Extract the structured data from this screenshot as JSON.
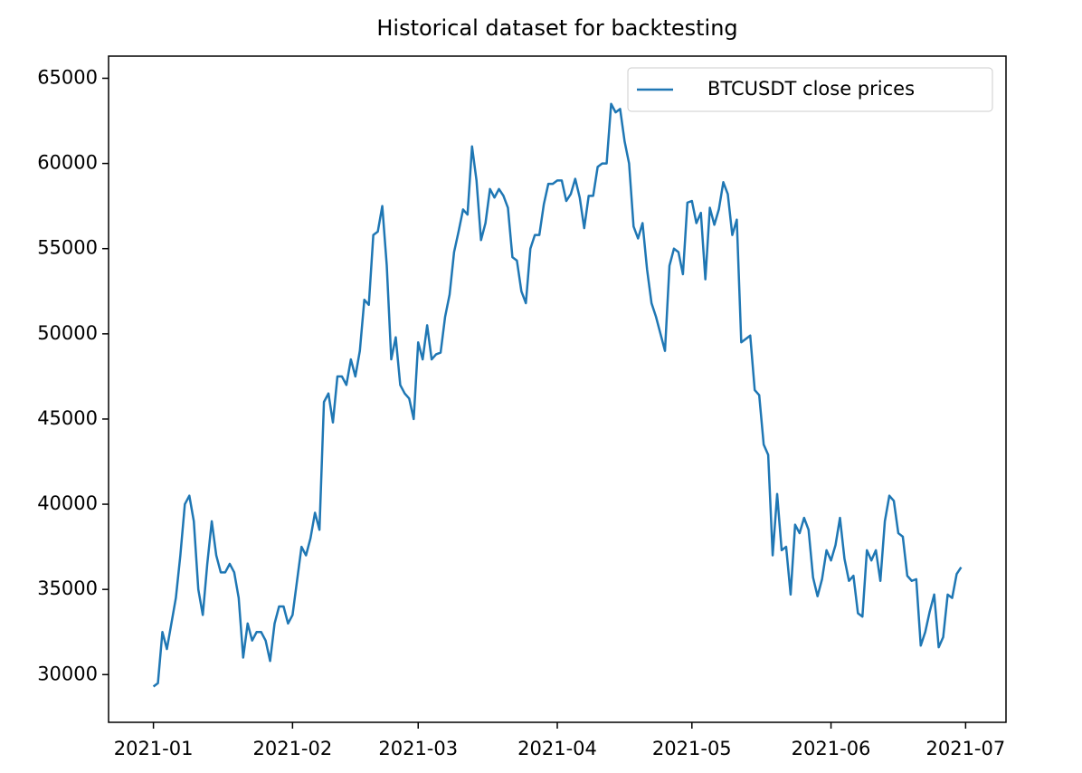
{
  "chart_data": {
    "type": "line",
    "title": "Historical dataset for backtesting",
    "x": [
      "2021-01-01",
      "2021-01-02",
      "2021-01-03",
      "2021-01-04",
      "2021-01-05",
      "2021-01-06",
      "2021-01-07",
      "2021-01-08",
      "2021-01-09",
      "2021-01-10",
      "2021-01-11",
      "2021-01-12",
      "2021-01-13",
      "2021-01-14",
      "2021-01-15",
      "2021-01-16",
      "2021-01-17",
      "2021-01-18",
      "2021-01-19",
      "2021-01-20",
      "2021-01-21",
      "2021-01-22",
      "2021-01-23",
      "2021-01-24",
      "2021-01-25",
      "2021-01-26",
      "2021-01-27",
      "2021-01-28",
      "2021-01-29",
      "2021-01-30",
      "2021-01-31",
      "2021-02-01",
      "2021-02-02",
      "2021-02-03",
      "2021-02-04",
      "2021-02-05",
      "2021-02-06",
      "2021-02-07",
      "2021-02-08",
      "2021-02-09",
      "2021-02-10",
      "2021-02-11",
      "2021-02-12",
      "2021-02-13",
      "2021-02-14",
      "2021-02-15",
      "2021-02-16",
      "2021-02-17",
      "2021-02-18",
      "2021-02-19",
      "2021-02-20",
      "2021-02-21",
      "2021-02-22",
      "2021-02-23",
      "2021-02-24",
      "2021-02-25",
      "2021-02-26",
      "2021-02-27",
      "2021-02-28",
      "2021-03-01",
      "2021-03-02",
      "2021-03-03",
      "2021-03-04",
      "2021-03-05",
      "2021-03-06",
      "2021-03-07",
      "2021-03-08",
      "2021-03-09",
      "2021-03-10",
      "2021-03-11",
      "2021-03-12",
      "2021-03-13",
      "2021-03-14",
      "2021-03-15",
      "2021-03-16",
      "2021-03-17",
      "2021-03-18",
      "2021-03-19",
      "2021-03-20",
      "2021-03-21",
      "2021-03-22",
      "2021-03-23",
      "2021-03-24",
      "2021-03-25",
      "2021-03-26",
      "2021-03-27",
      "2021-03-28",
      "2021-03-29",
      "2021-03-30",
      "2021-03-31",
      "2021-04-01",
      "2021-04-02",
      "2021-04-03",
      "2021-04-04",
      "2021-04-05",
      "2021-04-06",
      "2021-04-07",
      "2021-04-08",
      "2021-04-09",
      "2021-04-10",
      "2021-04-11",
      "2021-04-12",
      "2021-04-13",
      "2021-04-14",
      "2021-04-15",
      "2021-04-16",
      "2021-04-17",
      "2021-04-18",
      "2021-04-19",
      "2021-04-20",
      "2021-04-21",
      "2021-04-22",
      "2021-04-23",
      "2021-04-24",
      "2021-04-25",
      "2021-04-26",
      "2021-04-27",
      "2021-04-28",
      "2021-04-29",
      "2021-04-30",
      "2021-05-01",
      "2021-05-02",
      "2021-05-03",
      "2021-05-04",
      "2021-05-05",
      "2021-05-06",
      "2021-05-07",
      "2021-05-08",
      "2021-05-09",
      "2021-05-10",
      "2021-05-11",
      "2021-05-12",
      "2021-05-13",
      "2021-05-14",
      "2021-05-15",
      "2021-05-16",
      "2021-05-17",
      "2021-05-18",
      "2021-05-19",
      "2021-05-20",
      "2021-05-21",
      "2021-05-22",
      "2021-05-23",
      "2021-05-24",
      "2021-05-25",
      "2021-05-26",
      "2021-05-27",
      "2021-05-28",
      "2021-05-29",
      "2021-05-30",
      "2021-05-31",
      "2021-06-01",
      "2021-06-02",
      "2021-06-03",
      "2021-06-04",
      "2021-06-05",
      "2021-06-06",
      "2021-06-07",
      "2021-06-08",
      "2021-06-09",
      "2021-06-10",
      "2021-06-11",
      "2021-06-12",
      "2021-06-13",
      "2021-06-14",
      "2021-06-15",
      "2021-06-16",
      "2021-06-17",
      "2021-06-18",
      "2021-06-19",
      "2021-06-20",
      "2021-06-21",
      "2021-06-22",
      "2021-06-23",
      "2021-06-24",
      "2021-06-25",
      "2021-06-26",
      "2021-06-27",
      "2021-06-28",
      "2021-06-29",
      "2021-06-30"
    ],
    "series": [
      {
        "name": "BTCUSDT close prices",
        "color": "#1f77b4",
        "values": [
          29300,
          29500,
          32500,
          31500,
          33000,
          34500,
          37000,
          40000,
          40500,
          39000,
          35000,
          33500,
          36500,
          39000,
          37000,
          36000,
          36000,
          36500,
          36000,
          34500,
          31000,
          33000,
          32000,
          32500,
          32500,
          32000,
          30800,
          33000,
          34000,
          34000,
          33000,
          33500,
          35500,
          37500,
          37000,
          38000,
          39500,
          38500,
          46000,
          46500,
          44800,
          47500,
          47500,
          47000,
          48500,
          47500,
          49000,
          52000,
          51700,
          55800,
          56000,
          57500,
          54000,
          48500,
          49800,
          47000,
          46500,
          46200,
          45000,
          49500,
          48500,
          50500,
          48500,
          48800,
          48900,
          51000,
          52300,
          54800,
          56000,
          57300,
          57000,
          61000,
          59000,
          55500,
          56500,
          58500,
          58000,
          58500,
          58100,
          57400,
          54500,
          54300,
          52500,
          51800,
          55000,
          55800,
          55800,
          57600,
          58800,
          58800,
          59000,
          59000,
          57800,
          58200,
          59100,
          58000,
          56200,
          58100,
          58100,
          59800,
          60000,
          60000,
          63500,
          63000,
          63200,
          61300,
          60000,
          56300,
          55600,
          56500,
          53800,
          51800,
          51000,
          50000,
          49000,
          54000,
          55000,
          54800,
          53500,
          57700,
          57800,
          56500,
          57100,
          53200,
          57400,
          56400,
          57300,
          58900,
          58200,
          55800,
          56700,
          49500,
          49700,
          49900,
          46700,
          46400,
          43500,
          42900,
          37000,
          40600,
          37300,
          37500,
          34700,
          38800,
          38300,
          39200,
          38500,
          35700,
          34600,
          35600,
          37300,
          36700,
          37600,
          39200,
          36800,
          35500,
          35800,
          33600,
          33400,
          37300,
          36700,
          37300,
          35500,
          39000,
          40500,
          40200,
          38300,
          38100,
          35800,
          35500,
          35600,
          31700,
          32500,
          33700,
          34700,
          31600,
          32200,
          34700,
          34500,
          35900,
          36300
        ]
      }
    ],
    "xlim": [
      "2020-12-22",
      "2021-07-10"
    ],
    "xticks": [
      {
        "value": "2021-01-01",
        "label": "2021-01"
      },
      {
        "value": "2021-02-01",
        "label": "2021-02"
      },
      {
        "value": "2021-03-01",
        "label": "2021-03"
      },
      {
        "value": "2021-04-01",
        "label": "2021-04"
      },
      {
        "value": "2021-05-01",
        "label": "2021-05"
      },
      {
        "value": "2021-06-01",
        "label": "2021-06"
      },
      {
        "value": "2021-07-01",
        "label": "2021-07"
      }
    ],
    "ylim": [
      27200,
      66300
    ],
    "yticks": [
      30000,
      35000,
      40000,
      45000,
      50000,
      55000,
      60000,
      65000
    ],
    "grid": false,
    "legend": "upper right"
  }
}
